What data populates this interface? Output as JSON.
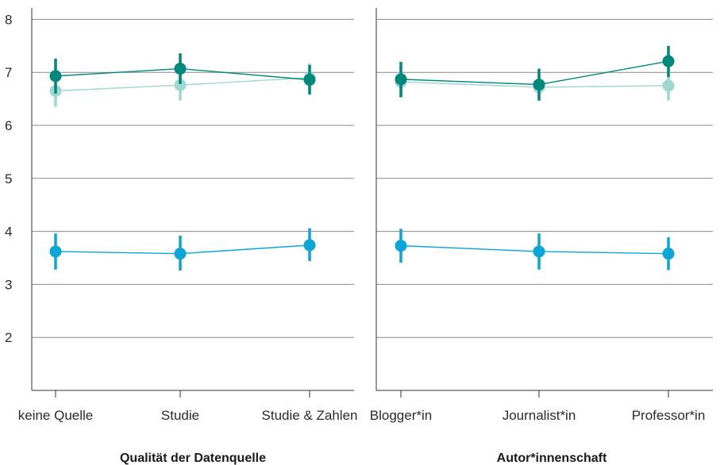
{
  "chart_data": [
    {
      "type": "line",
      "title": "Qualität der Datenquelle",
      "categories": [
        "keine Quelle",
        "Studie",
        "Studie & Zahlen"
      ],
      "ylim": [
        1,
        8
      ],
      "yticks": [
        2,
        3,
        4,
        5,
        6,
        7,
        8
      ],
      "grid": true,
      "series": [
        {
          "color": "#00897b",
          "values": [
            6.93,
            7.07,
            6.86
          ],
          "err_low": [
            6.6,
            6.78,
            6.58
          ],
          "err_high": [
            7.26,
            7.36,
            7.14
          ]
        },
        {
          "color": "#9ed6d0",
          "values": [
            6.65,
            6.76,
            6.9
          ],
          "err_low": [
            6.35,
            6.47,
            6.62
          ],
          "err_high": [
            6.94,
            7.04,
            7.17
          ]
        },
        {
          "color": "#0aa6d8",
          "values": [
            3.62,
            3.58,
            3.74
          ],
          "err_low": [
            3.28,
            3.26,
            3.44
          ],
          "err_high": [
            3.96,
            3.92,
            4.06
          ]
        }
      ]
    },
    {
      "type": "line",
      "title": "Autor*innenschaft",
      "categories": [
        "Blogger*in",
        "Journalist*in",
        "Professor*in"
      ],
      "ylim": [
        1,
        8
      ],
      "yticks": [
        2,
        3,
        4,
        5,
        6,
        7,
        8
      ],
      "grid": true,
      "series": [
        {
          "color": "#00897b",
          "values": [
            6.87,
            6.77,
            7.21
          ],
          "err_low": [
            6.53,
            6.47,
            6.91
          ],
          "err_high": [
            7.2,
            7.07,
            7.5
          ]
        },
        {
          "color": "#9ed6d0",
          "values": [
            6.82,
            6.72,
            6.75
          ],
          "err_low": [
            6.54,
            6.46,
            6.47
          ],
          "err_high": [
            7.1,
            6.99,
            7.03
          ]
        },
        {
          "color": "#0aa6d8",
          "values": [
            3.73,
            3.62,
            3.58
          ],
          "err_low": [
            3.41,
            3.28,
            3.27
          ],
          "err_high": [
            4.05,
            3.96,
            3.89
          ]
        }
      ]
    }
  ]
}
